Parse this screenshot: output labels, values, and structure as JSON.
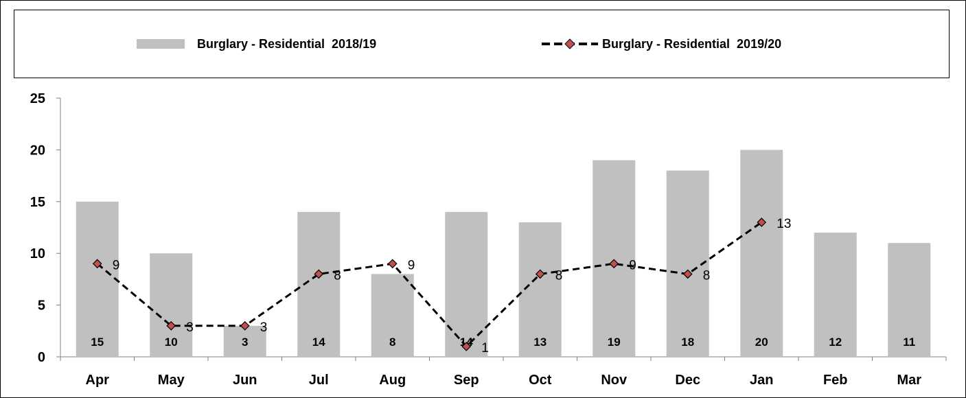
{
  "chart_data": {
    "type": "bar",
    "categories": [
      "Apr",
      "May",
      "Jun",
      "Jul",
      "Aug",
      "Sep",
      "Oct",
      "Nov",
      "Dec",
      "Jan",
      "Feb",
      "Mar"
    ],
    "series": [
      {
        "name": "Burglary - Residential  2018/19",
        "type": "bar",
        "values": [
          15,
          10,
          3,
          14,
          8,
          14,
          13,
          19,
          18,
          20,
          12,
          11
        ],
        "color": "#c0c0c0",
        "data_labels": [
          "15",
          "10",
          "3",
          "14",
          "8",
          "14",
          "13",
          "19",
          "18",
          "20",
          "12",
          "11"
        ]
      },
      {
        "name": "Burglary - Residential  2019/20",
        "type": "line",
        "style": "dashed",
        "marker": "diamond",
        "values": [
          9,
          3,
          3,
          8,
          9,
          1,
          8,
          9,
          8,
          13,
          null,
          null
        ],
        "color": "#000000",
        "marker_color": "#c0504d",
        "data_labels": [
          "9",
          "3",
          "3",
          "8",
          "9",
          "1",
          "8",
          "9",
          "8",
          "13",
          "",
          ""
        ]
      }
    ],
    "ylim": [
      0,
      25
    ],
    "yticks": [
      "0",
      "5",
      "10",
      "15",
      "20",
      "25"
    ],
    "legend_position": "top",
    "grid": false
  }
}
